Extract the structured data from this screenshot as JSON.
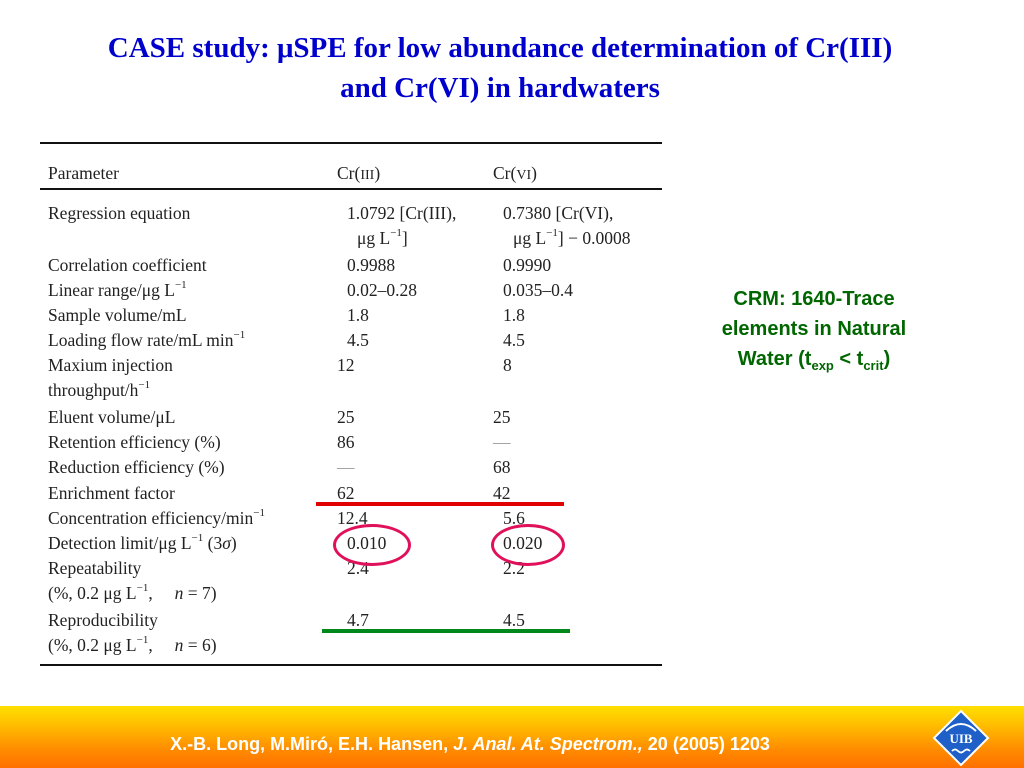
{
  "title": {
    "line1": "CASE study: μSPE for low abundance determination of Cr(III)",
    "line2": "and Cr(VI) in hardwaters"
  },
  "table": {
    "headers": [
      "Parameter",
      "Cr(III)",
      "Cr(VI)"
    ],
    "rows": [
      {
        "param": [
          "Regression equation",
          ""
        ],
        "cr3": [
          "1.0792 [Cr(III),",
          "μg L⁻¹]"
        ],
        "cr6": [
          "0.7380 [Cr(VI),",
          "μg L⁻¹] − 0.0008"
        ]
      },
      {
        "param": [
          "Correlation coefficient"
        ],
        "cr3": [
          "0.9988"
        ],
        "cr6": [
          "0.9990"
        ]
      },
      {
        "param": [
          "Linear range/μg L⁻¹"
        ],
        "cr3": [
          "0.02–0.28"
        ],
        "cr6": [
          "0.035–0.4"
        ]
      },
      {
        "param": [
          "Sample volume/mL"
        ],
        "cr3": [
          "1.8"
        ],
        "cr6": [
          "1.8"
        ]
      },
      {
        "param": [
          "Loading flow rate/mL min⁻¹"
        ],
        "cr3": [
          "4.5"
        ],
        "cr6": [
          "4.5"
        ]
      },
      {
        "param": [
          "Maxium injection",
          "throughput/h⁻¹"
        ],
        "cr3": [
          "12"
        ],
        "cr6": [
          "8"
        ]
      },
      {
        "param": [
          "Eluent volume/μL"
        ],
        "cr3": [
          "25"
        ],
        "cr6": [
          "25"
        ]
      },
      {
        "param": [
          "Retention efficiency (%)"
        ],
        "cr3": [
          "86"
        ],
        "cr6": [
          "—"
        ]
      },
      {
        "param": [
          "Reduction efficiency (%)"
        ],
        "cr3": [
          "—"
        ],
        "cr6": [
          "68"
        ]
      },
      {
        "param": [
          "Enrichment factor"
        ],
        "cr3": [
          "62"
        ],
        "cr6": [
          "42"
        ]
      },
      {
        "param": [
          "Concentration efficiency/min⁻¹"
        ],
        "cr3": [
          "12.4"
        ],
        "cr6": [
          "5.6"
        ]
      },
      {
        "param": [
          "Detection limit/μg L⁻¹ (3σ)"
        ],
        "cr3": [
          "0.010"
        ],
        "cr6": [
          "0.020"
        ]
      },
      {
        "param": [
          "Repeatability",
          "(%, 0.2 μg L⁻¹,   n = 7)"
        ],
        "cr3": [
          "2.4"
        ],
        "cr6": [
          "2.2"
        ]
      },
      {
        "param": [
          "Reproducibility",
          "(%, 0.2 μg L⁻¹,   n = 6)"
        ],
        "cr3": [
          "4.7"
        ],
        "cr6": [
          "4.5"
        ]
      }
    ]
  },
  "note": {
    "line1": "CRM: 1640-Trace",
    "line2": "elements in Natural",
    "line3_prefix": "Water (t",
    "sub_exp": "exp",
    "mid": " < t",
    "sub_crit": "crit",
    "suffix": ")"
  },
  "footer": {
    "authors": "X.-B. Long, M.Miró, E.H. Hansen, ",
    "journal": "J. Anal. At. Spectrom.,",
    "ref": " 20 (2005) 1203",
    "logo_text": "UIB",
    "colors": {
      "top": "#ffe000",
      "bottom": "#ff7000",
      "logo": "#1e5fc8"
    }
  },
  "annotation_colors": {
    "underline_red": "#e00000",
    "underline_green": "#00891a",
    "circle": "#e0105a"
  }
}
